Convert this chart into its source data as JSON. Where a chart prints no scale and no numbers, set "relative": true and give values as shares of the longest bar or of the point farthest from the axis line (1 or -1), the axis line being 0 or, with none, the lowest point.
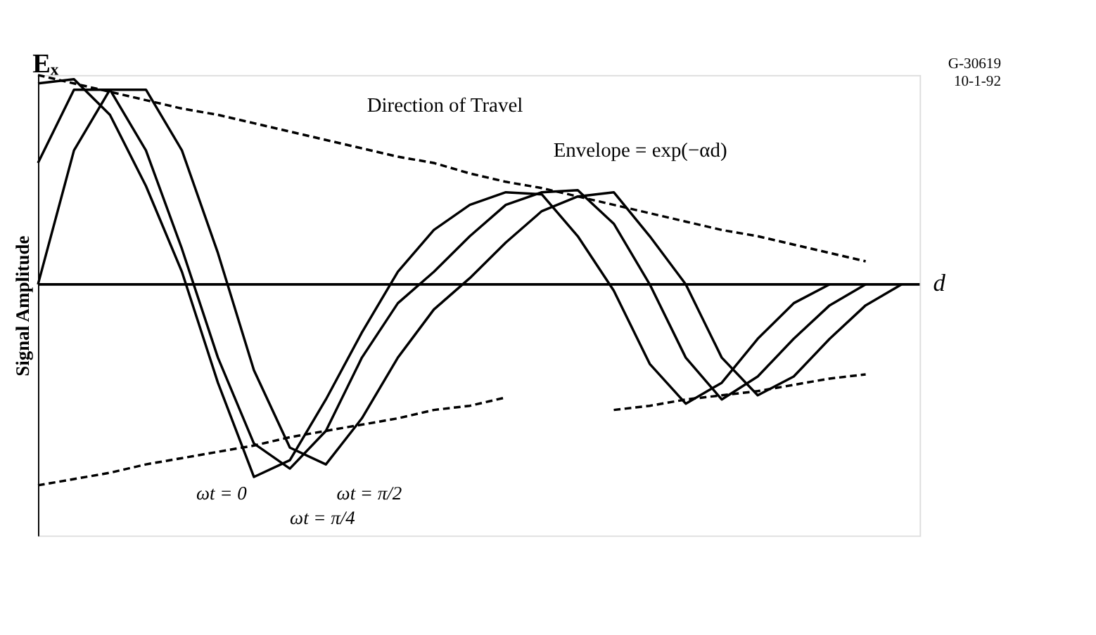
{
  "chart_data": {
    "type": "line",
    "relative": true,
    "ylabel": "Signal Amplitude",
    "xlabel": "d",
    "categories": [
      null,
      null,
      null,
      null,
      null,
      null,
      null,
      null,
      null,
      null,
      null,
      null,
      null,
      null,
      null,
      null,
      null,
      null,
      null,
      null,
      null,
      null,
      null,
      null,
      null
    ],
    "series": [
      {
        "name": "ωt = 0",
        "color": "#000000",
        "line_style": "solid",
        "values": [
          0.96,
          0.98,
          0.81,
          0.47,
          0.06,
          -0.47,
          -0.92,
          -0.84,
          -0.55,
          -0.23,
          0.06,
          0.26,
          0.38,
          0.44,
          0.43,
          0.23,
          -0.03,
          -0.38,
          -0.57,
          -0.47,
          -0.26,
          -0.09,
          0,
          null,
          null
        ]
      },
      {
        "name": "ωt = π/4",
        "color": "#000000",
        "line_style": "solid",
        "values": [
          0.58,
          0.93,
          0.93,
          0.64,
          0.17,
          -0.35,
          -0.76,
          -0.88,
          -0.7,
          -0.35,
          -0.09,
          0.06,
          0.23,
          0.38,
          0.44,
          0.45,
          0.29,
          0,
          -0.35,
          -0.55,
          -0.44,
          -0.26,
          -0.1,
          0,
          null
        ]
      },
      {
        "name": "ωt = π/2",
        "color": "#000000",
        "line_style": "solid",
        "values": [
          0,
          0.64,
          0.93,
          0.93,
          0.64,
          0.15,
          -0.41,
          -0.78,
          -0.86,
          -0.64,
          -0.35,
          -0.12,
          0.03,
          0.2,
          0.35,
          0.42,
          0.44,
          0.23,
          0,
          -0.35,
          -0.53,
          -0.44,
          -0.26,
          -0.1,
          0
        ]
      },
      {
        "color": "#000000",
        "line_style": "dashed",
        "values": [
          1,
          0.96,
          0.92,
          0.88,
          0.84,
          0.81,
          0.77,
          0.73,
          0.69,
          0.65,
          0.61,
          0.58,
          0.53,
          0.49,
          0.46,
          0.42,
          0.38,
          0.34,
          0.3,
          0.26,
          0.23,
          0.19,
          0.15,
          0.11,
          null
        ]
      },
      {
        "color": "#000000",
        "line_style": "dashed",
        "values": [
          -0.96,
          -0.93,
          -0.9,
          -0.86,
          -0.83,
          -0.8,
          -0.77,
          -0.73,
          -0.7,
          -0.67,
          -0.64,
          -0.6,
          -0.58,
          -0.54,
          null,
          null,
          null,
          null,
          null,
          null,
          null,
          null,
          null,
          null,
          null
        ]
      },
      {
        "color": "#000000",
        "line_style": "dashed",
        "values": [
          null,
          null,
          null,
          null,
          null,
          null,
          null,
          null,
          null,
          null,
          null,
          null,
          null,
          null,
          null,
          null,
          -0.6,
          -0.58,
          -0.55,
          -0.53,
          -0.51,
          -0.48,
          -0.45,
          -0.43,
          null
        ]
      }
    ],
    "annotations": [
      "Eₓ",
      "Direction of Travel",
      "Envelope = exp(−αd)",
      "G-30619",
      "10-1-92"
    ],
    "legend": false,
    "grid": false,
    "marker": "none"
  }
}
